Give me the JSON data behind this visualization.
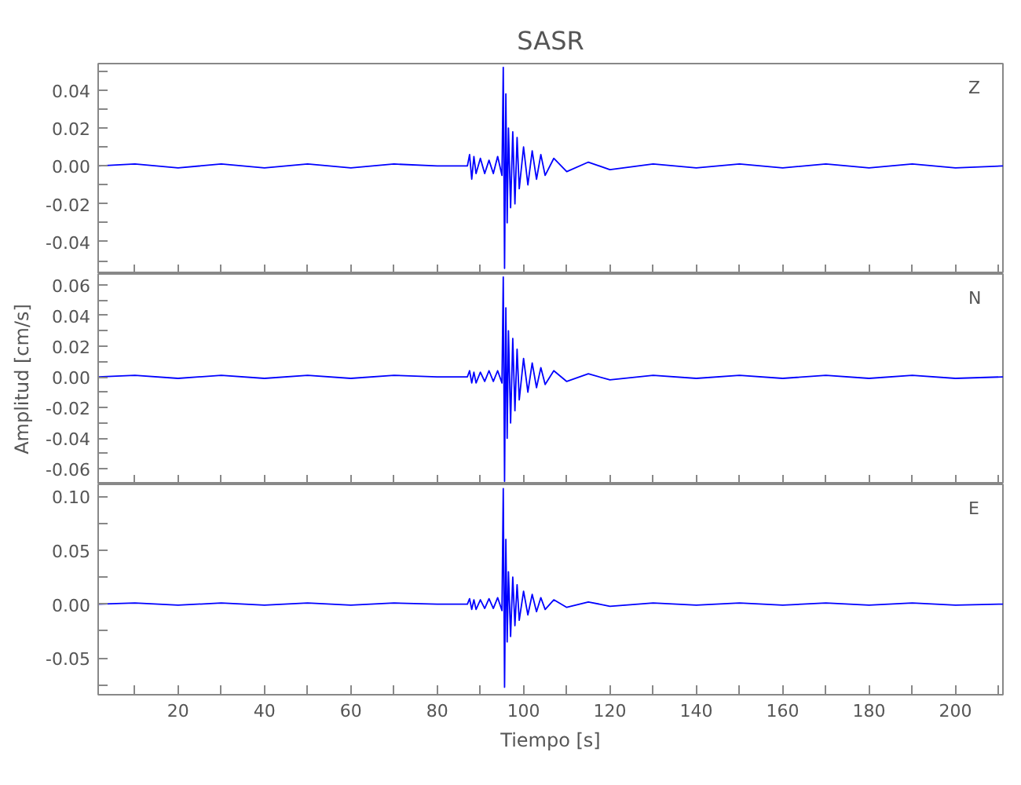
{
  "chart_data": [
    {
      "type": "line",
      "title": "SASR",
      "annotations": [
        "Z"
      ],
      "tick_labels": "y",
      "grid": false,
      "line_style": "solid",
      "x": [
        1.5,
        10,
        20,
        30,
        40,
        50,
        60,
        70,
        80,
        87,
        87.5,
        88,
        88.5,
        89,
        90,
        91,
        92,
        93,
        94,
        95,
        95.3,
        95.6,
        95.9,
        96.2,
        96.5,
        97,
        97.5,
        98,
        98.5,
        99,
        100,
        101,
        102,
        103,
        104,
        105,
        107,
        110,
        115,
        120,
        130,
        140,
        150,
        160,
        170,
        180,
        190,
        200,
        211
      ],
      "series": [
        {
          "color": "#0000ff",
          "values": [
            0,
            0.001,
            -0.001,
            0.001,
            -0.001,
            0.001,
            -0.001,
            0.001,
            0,
            0,
            0.006,
            -0.007,
            0.005,
            -0.004,
            0.004,
            -0.004,
            0.003,
            -0.004,
            0.005,
            -0.005,
            0.052,
            -0.054,
            0.038,
            -0.03,
            0.02,
            -0.022,
            0.018,
            -0.02,
            0.015,
            -0.012,
            0.01,
            -0.01,
            0.008,
            -0.007,
            0.006,
            -0.005,
            0.004,
            -0.003,
            0.002,
            -0.002,
            0.001,
            -0.001,
            0.001,
            -0.001,
            0.001,
            -0.001,
            0.001,
            -0.001,
            0
          ]
        }
      ],
      "xlim": [
        1.5,
        211
      ],
      "ylim": [
        -0.057,
        0.054
      ],
      "xticks": [
        {
          "value": 10,
          "label": null
        },
        20,
        {
          "value": 30,
          "label": null
        },
        40,
        {
          "value": 50,
          "label": null
        },
        60,
        {
          "value": 70,
          "label": null
        },
        80,
        {
          "value": 90,
          "label": null
        },
        100,
        {
          "value": 110,
          "label": null
        },
        120,
        {
          "value": 130,
          "label": null
        },
        140,
        {
          "value": 150,
          "label": null
        },
        160,
        {
          "value": 170,
          "label": null
        },
        180,
        {
          "value": 190,
          "label": null
        },
        200,
        {
          "value": 210,
          "label": null
        }
      ],
      "yticks": [
        {
          "value": -0.05,
          "label": null
        },
        -0.04,
        {
          "value": -0.03,
          "label": null
        },
        -0.02,
        {
          "value": -0.01,
          "label": null
        },
        {
          "value": 0,
          "label": "0.00"
        },
        {
          "value": 0.01,
          "label": null
        },
        0.02,
        {
          "value": 0.03,
          "label": null
        },
        0.04,
        {
          "value": 0.05,
          "label": null
        }
      ]
    },
    {
      "type": "line",
      "ylabel": "Amplitud [cm/s]",
      "annotations": [
        "N"
      ],
      "tick_labels": "y",
      "grid": false,
      "line_style": "solid",
      "x": [
        1.5,
        10,
        20,
        30,
        40,
        50,
        60,
        70,
        80,
        87,
        87.5,
        88,
        88.5,
        89,
        90,
        91,
        92,
        93,
        94,
        95,
        95.3,
        95.6,
        95.9,
        96.2,
        96.5,
        97,
        97.5,
        98,
        98.5,
        99,
        100,
        101,
        102,
        103,
        104,
        105,
        107,
        110,
        115,
        120,
        130,
        140,
        150,
        160,
        170,
        180,
        190,
        200,
        211
      ],
      "series": [
        {
          "color": "#0000ff",
          "values": [
            0,
            0.001,
            -0.001,
            0.001,
            -0.001,
            0.001,
            -0.001,
            0.001,
            0,
            0,
            0.004,
            -0.004,
            0.003,
            -0.004,
            0.003,
            -0.003,
            0.004,
            -0.003,
            0.004,
            -0.004,
            0.065,
            -0.068,
            0.045,
            -0.04,
            0.03,
            -0.03,
            0.025,
            -0.022,
            0.018,
            -0.015,
            0.012,
            -0.01,
            0.009,
            -0.007,
            0.006,
            -0.005,
            0.004,
            -0.003,
            0.002,
            -0.002,
            0.001,
            -0.001,
            0.001,
            -0.001,
            0.001,
            -0.001,
            0.001,
            -0.001,
            0
          ]
        }
      ],
      "xlim": [
        1.5,
        211
      ],
      "ylim": [
        -0.07,
        0.067
      ],
      "xticks": [
        {
          "value": 10,
          "label": null
        },
        20,
        {
          "value": 30,
          "label": null
        },
        40,
        {
          "value": 50,
          "label": null
        },
        60,
        {
          "value": 70,
          "label": null
        },
        80,
        {
          "value": 90,
          "label": null
        },
        100,
        {
          "value": 110,
          "label": null
        },
        120,
        {
          "value": 130,
          "label": null
        },
        140,
        {
          "value": 150,
          "label": null
        },
        160,
        {
          "value": 170,
          "label": null
        },
        180,
        {
          "value": 190,
          "label": null
        },
        200,
        {
          "value": 210,
          "label": null
        }
      ],
      "yticks": [
        -0.06,
        {
          "value": -0.05,
          "label": null
        },
        -0.04,
        {
          "value": -0.03,
          "label": null
        },
        -0.02,
        {
          "value": -0.01,
          "label": null
        },
        {
          "value": 0,
          "label": "0.00"
        },
        {
          "value": 0.01,
          "label": null
        },
        0.02,
        {
          "value": 0.03,
          "label": null
        },
        0.04,
        {
          "value": 0.05,
          "label": null
        },
        0.06
      ]
    },
    {
      "type": "line",
      "xlabel": "Tiempo [s]",
      "annotations": [
        "E"
      ],
      "grid": false,
      "line_style": "solid",
      "x": [
        1.5,
        10,
        20,
        30,
        40,
        50,
        60,
        70,
        80,
        87,
        87.5,
        88,
        88.5,
        89,
        90,
        91,
        92,
        93,
        94,
        95,
        95.3,
        95.6,
        95.9,
        96.2,
        96.5,
        97,
        97.5,
        98,
        98.5,
        99,
        100,
        101,
        102,
        103,
        104,
        105,
        107,
        110,
        115,
        120,
        130,
        140,
        150,
        160,
        170,
        180,
        190,
        200,
        211
      ],
      "series": [
        {
          "color": "#0000ff",
          "values": [
            0,
            0.001,
            -0.001,
            0.001,
            -0.001,
            0.001,
            -0.001,
            0.001,
            0,
            0,
            0.005,
            -0.005,
            0.004,
            -0.005,
            0.004,
            -0.004,
            0.005,
            -0.004,
            0.006,
            -0.006,
            0.107,
            -0.077,
            0.06,
            -0.035,
            0.03,
            -0.03,
            0.025,
            -0.02,
            0.018,
            -0.015,
            0.012,
            -0.01,
            0.009,
            -0.007,
            0.006,
            -0.005,
            0.004,
            -0.003,
            0.002,
            -0.002,
            0.001,
            -0.001,
            0.001,
            -0.001,
            0.001,
            -0.001,
            0.001,
            -0.001,
            0
          ]
        }
      ],
      "xlim": [
        1.5,
        211
      ],
      "ylim": [
        -0.084,
        0.111
      ],
      "xticks": [
        {
          "value": 10,
          "label": null
        },
        20,
        {
          "value": 30,
          "label": null
        },
        40,
        {
          "value": 50,
          "label": null
        },
        60,
        {
          "value": 70,
          "label": null
        },
        80,
        {
          "value": 90,
          "label": null
        },
        100,
        {
          "value": 110,
          "label": null
        },
        120,
        {
          "value": 130,
          "label": null
        },
        140,
        {
          "value": 150,
          "label": null
        },
        160,
        {
          "value": 170,
          "label": null
        },
        180,
        {
          "value": 190,
          "label": null
        },
        200,
        {
          "value": 210,
          "label": null
        }
      ],
      "yticks": [
        {
          "value": -0.075,
          "label": null
        },
        -0.05,
        {
          "value": -0.025,
          "label": null
        },
        {
          "value": 0,
          "label": "0.00"
        },
        {
          "value": 0.025,
          "label": null
        },
        0.05,
        {
          "value": 0.075,
          "label": null
        },
        {
          "value": 0.1,
          "label": "0.10"
        }
      ]
    }
  ]
}
